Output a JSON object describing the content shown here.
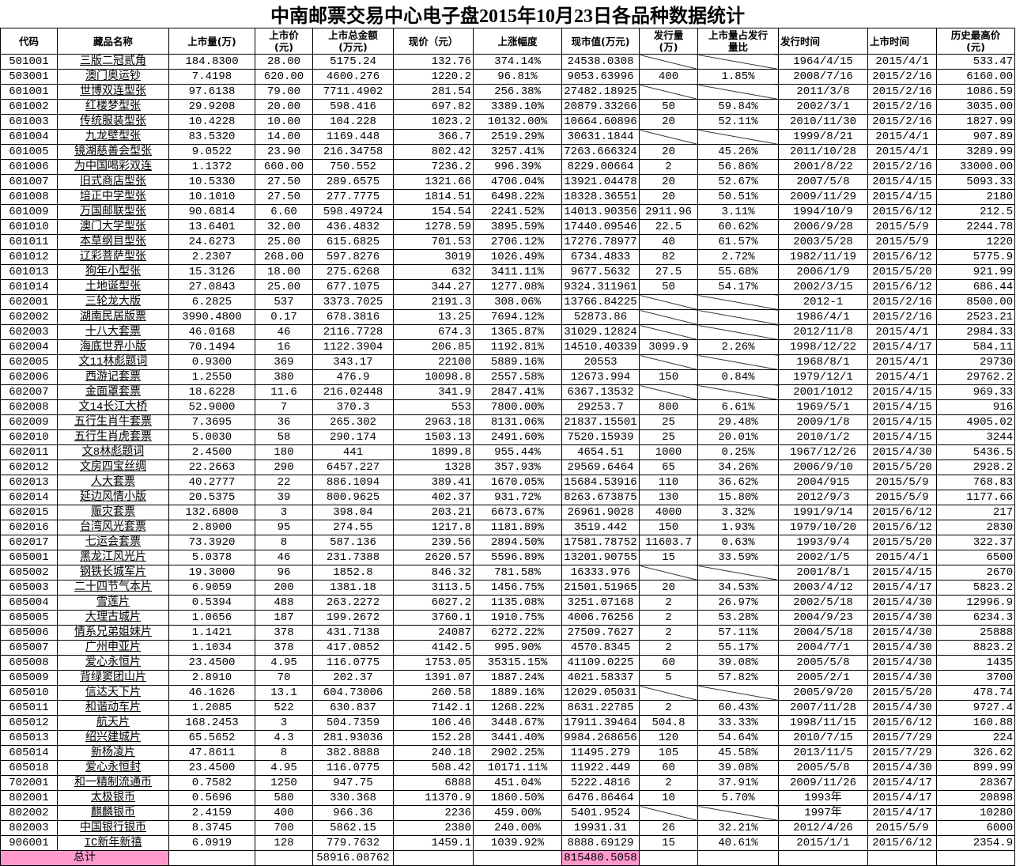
{
  "title": "中南邮票交易中心电子盘2015年10月23日各品种数据统计",
  "headers": [
    "代码",
    "藏品名称",
    "上市量(万)",
    "上市价\n(元)",
    "上市总金额\n(万元)",
    "现价（元）",
    "上涨幅度",
    "现市值(万元)",
    "发行量\n(万)",
    "上市量占发行\n量比",
    "发行时间",
    "上市时间",
    "历史最高价\n(元)"
  ],
  "slash_note": "",
  "rows": [
    [
      "501001",
      "三版二冠贰角",
      "184.8300",
      "28.00",
      "5175.24",
      "132.76",
      "374.14%",
      "24538.0308",
      null,
      null,
      "1964/4/15",
      "2015/4/1",
      "533.47"
    ],
    [
      "503001",
      "澳门奥运钞",
      "7.4198",
      "620.00",
      "4600.276",
      "1220.2",
      "96.81%",
      "9053.63996",
      "400",
      "1.85%",
      "2008/7/16",
      "2015/2/16",
      "6160.00"
    ],
    [
      "601001",
      "世博双连型张",
      "97.6138",
      "79.00",
      "7711.4902",
      "281.54",
      "256.38%",
      "27482.18925",
      null,
      null,
      "2011/3/8",
      "2015/2/16",
      "1086.59"
    ],
    [
      "601002",
      "红楼梦型张",
      "29.9208",
      "20.00",
      "598.416",
      "697.82",
      "3389.10%",
      "20879.33266",
      "50",
      "59.84%",
      "2002/3/1",
      "2015/2/16",
      "3035.00"
    ],
    [
      "601003",
      "传统服装型张",
      "10.4228",
      "10.00",
      "104.228",
      "1023.2",
      "10132.00%",
      "10664.60896",
      "20",
      "52.11%",
      "2010/11/30",
      "2015/2/16",
      "1827.99"
    ],
    [
      "601004",
      "九龙壁型张",
      "83.5320",
      "14.00",
      "1169.448",
      "366.7",
      "2519.29%",
      "30631.1844",
      null,
      null,
      "1999/8/21",
      "2015/4/1",
      "907.89"
    ],
    [
      "601005",
      "镜湖慈善会型张",
      "9.0522",
      "23.90",
      "216.34758",
      "802.42",
      "3257.41%",
      "7263.666324",
      "20",
      "45.26%",
      "2011/10/28",
      "2015/4/1",
      "3289.99"
    ],
    [
      "601006",
      "为中国喝彩双连",
      "1.1372",
      "660.00",
      "750.552",
      "7236.2",
      "996.39%",
      "8229.00664",
      "2",
      "56.86%",
      "2001/8/22",
      "2015/2/16",
      "33000.00"
    ],
    [
      "601007",
      "旧式商店型张",
      "10.5330",
      "27.50",
      "289.6575",
      "1321.66",
      "4706.04%",
      "13921.04478",
      "20",
      "52.67%",
      "2007/5/8",
      "2015/4/15",
      "5093.33"
    ],
    [
      "601008",
      "培正中学型张",
      "10.1010",
      "27.50",
      "277.7775",
      "1814.51",
      "6498.22%",
      "18328.36551",
      "20",
      "50.51%",
      "2009/11/29",
      "2015/4/15",
      "2180"
    ],
    [
      "601009",
      "万国邮联型张",
      "90.6814",
      "6.60",
      "598.49724",
      "154.54",
      "2241.52%",
      "14013.90356",
      "2911.96",
      "3.11%",
      "1994/10/9",
      "2015/6/12",
      "212.5"
    ],
    [
      "601010",
      "澳门大学型张",
      "13.6401",
      "32.00",
      "436.4832",
      "1278.59",
      "3895.59%",
      "17440.09546",
      "22.5",
      "60.62%",
      "2006/9/28",
      "2015/5/9",
      "2244.78"
    ],
    [
      "601011",
      "本草纲目型张",
      "24.6273",
      "25.00",
      "615.6825",
      "701.53",
      "2706.12%",
      "17276.78977",
      "40",
      "61.57%",
      "2003/5/28",
      "2015/5/9",
      "1220"
    ],
    [
      "601012",
      "辽彩菩萨型张",
      "2.2307",
      "268.00",
      "597.8276",
      "3019",
      "1026.49%",
      "6734.4833",
      "82",
      "2.72%",
      "1982/11/19",
      "2015/6/12",
      "5775.9"
    ],
    [
      "601013",
      "狗年小型张",
      "15.3126",
      "18.00",
      "275.6268",
      "632",
      "3411.11%",
      "9677.5632",
      "27.5",
      "55.68%",
      "2006/1/9",
      "2015/5/20",
      "921.99"
    ],
    [
      "601014",
      "土地诞型张",
      "27.0843",
      "25.00",
      "677.1075",
      "344.27",
      "1277.08%",
      "9324.311961",
      "50",
      "54.17%",
      "2002/3/15",
      "2015/6/12",
      "686.44"
    ],
    [
      "602001",
      "三轮龙大版",
      "6.2825",
      "537",
      "3373.7025",
      "2191.3",
      "308.06%",
      "13766.84225",
      null,
      null,
      "2012-1",
      "2015/2/16",
      "8500.00"
    ],
    [
      "602002",
      "湖南民居版票",
      "3990.4800",
      "0.17",
      "678.3816",
      "13.25",
      "7694.12%",
      "52873.86",
      null,
      null,
      "1986/4/1",
      "2015/2/16",
      "2523.21"
    ],
    [
      "602003",
      "十八大套票",
      "46.0168",
      "46",
      "2116.7728",
      "674.3",
      "1365.87%",
      "31029.12824",
      null,
      null,
      "2012/11/8",
      "2015/4/1",
      "2984.33"
    ],
    [
      "602004",
      "海底世界小版",
      "70.1494",
      "16",
      "1122.3904",
      "206.85",
      "1192.81%",
      "14510.40339",
      "3099.9",
      "2.26%",
      "1998/12/22",
      "2015/4/17",
      "584.11"
    ],
    [
      "602005",
      "文11林彪题词",
      "0.9300",
      "369",
      "343.17",
      "22100",
      "5889.16%",
      "20553",
      null,
      null,
      "1968/8/1",
      "2015/4/1",
      "29730"
    ],
    [
      "602006",
      "西游记套票",
      "1.2550",
      "380",
      "476.9",
      "10098.8",
      "2557.58%",
      "12673.994",
      "150",
      "0.84%",
      "1979/12/1",
      "2015/4/1",
      "29762.2"
    ],
    [
      "602007",
      "金面罩套票",
      "18.6228",
      "11.6",
      "216.02448",
      "341.9",
      "2847.41%",
      "6367.13532",
      null,
      null,
      "2001/1012",
      "2015/4/15",
      "969.33"
    ],
    [
      "602008",
      "文14长江大桥",
      "52.9000",
      "7",
      "370.3",
      "553",
      "7800.00%",
      "29253.7",
      "800",
      "6.61%",
      "1969/5/1",
      "2015/4/15",
      "916"
    ],
    [
      "602009",
      "五行生肖牛套票",
      "7.3695",
      "36",
      "265.302",
      "2963.18",
      "8131.06%",
      "21837.15501",
      "25",
      "29.48%",
      "2009/1/8",
      "2015/4/15",
      "4905.02"
    ],
    [
      "602010",
      "五行生肖虎套票",
      "5.0030",
      "58",
      "290.174",
      "1503.13",
      "2491.60%",
      "7520.15939",
      "25",
      "20.01%",
      "2010/1/2",
      "2015/4/15",
      "3244"
    ],
    [
      "602011",
      "文8林彪题词",
      "2.4500",
      "180",
      "441",
      "1899.8",
      "955.44%",
      "4654.51",
      "1000",
      "0.25%",
      "1967/12/26",
      "2015/4/30",
      "5436.5"
    ],
    [
      "602012",
      "文房四宝丝绸",
      "22.2663",
      "290",
      "6457.227",
      "1328",
      "357.93%",
      "29569.6464",
      "65",
      "34.26%",
      "2006/9/10",
      "2015/5/20",
      "2928.2"
    ],
    [
      "602013",
      "人大套票",
      "40.2777",
      "22",
      "886.1094",
      "389.41",
      "1670.05%",
      "15684.53916",
      "110",
      "36.62%",
      "2004/915",
      "2015/5/9",
      "768.83"
    ],
    [
      "602014",
      "延边风情小版",
      "20.5375",
      "39",
      "800.9625",
      "402.37",
      "931.72%",
      "8263.673875",
      "130",
      "15.80%",
      "2012/9/3",
      "2015/5/9",
      "1177.66"
    ],
    [
      "602015",
      "赈灾套票",
      "132.6800",
      "3",
      "398.04",
      "203.21",
      "6673.67%",
      "26961.9028",
      "4000",
      "3.32%",
      "1991/9/14",
      "2015/6/12",
      "217"
    ],
    [
      "602016",
      "台湾风光套票",
      "2.8900",
      "95",
      "274.55",
      "1217.8",
      "1181.89%",
      "3519.442",
      "150",
      "1.93%",
      "1979/10/20",
      "2015/6/12",
      "2830"
    ],
    [
      "602017",
      "七运会套票",
      "73.3920",
      "8",
      "587.136",
      "239.56",
      "2894.50%",
      "17581.78752",
      "11603.7",
      "0.63%",
      "1993/9/4",
      "2015/5/20",
      "322.37"
    ],
    [
      "605001",
      "黑龙江风光片",
      "5.0378",
      "46",
      "231.7388",
      "2620.57",
      "5596.89%",
      "13201.90755",
      "15",
      "33.59%",
      "2002/1/5",
      "2015/4/1",
      "6500"
    ],
    [
      "605002",
      "钢铁长城军片",
      "19.3000",
      "96",
      "1852.8",
      "846.32",
      "781.58%",
      "16333.976",
      null,
      null,
      "2001/8/1",
      "2015/4/15",
      "2670"
    ],
    [
      "605003",
      "二十四节气本片",
      "6.9059",
      "200",
      "1381.18",
      "3113.5",
      "1456.75%",
      "21501.51965",
      "20",
      "34.53%",
      "2003/4/12",
      "2015/4/17",
      "5823.2"
    ],
    [
      "605004",
      "雪莲片",
      "0.5394",
      "488",
      "263.2272",
      "6027.2",
      "1135.08%",
      "3251.07168",
      "2",
      "26.97%",
      "2002/5/18",
      "2015/4/30",
      "12996.9"
    ],
    [
      "605005",
      "大理古城片",
      "1.0656",
      "187",
      "199.2672",
      "3760.1",
      "1910.75%",
      "4006.76256",
      "2",
      "53.28%",
      "2004/9/23",
      "2015/4/30",
      "6234.3"
    ],
    [
      "605006",
      "情系兄弟姐妹片",
      "1.1421",
      "378",
      "431.7138",
      "24087",
      "6272.22%",
      "27509.7627",
      "2",
      "57.11%",
      "2004/5/18",
      "2015/4/30",
      "25888"
    ],
    [
      "605007",
      "广州申亚片",
      "1.1034",
      "378",
      "417.0852",
      "4142.5",
      "995.90%",
      "4570.8345",
      "2",
      "55.17%",
      "2004/7/1",
      "2015/4/30",
      "8823.2"
    ],
    [
      "605008",
      "爱心永恒片",
      "23.4500",
      "4.95",
      "116.0775",
      "1753.05",
      "35315.15%",
      "41109.0225",
      "60",
      "39.08%",
      "2005/5/8",
      "2015/4/30",
      "1435"
    ],
    [
      "605009",
      "背绿窦团山片",
      "2.8910",
      "70",
      "202.37",
      "1391.07",
      "1887.24%",
      "4021.58337",
      "5",
      "57.82%",
      "2005/2/1",
      "2015/4/30",
      "3700"
    ],
    [
      "605010",
      "信达天下片",
      "46.1626",
      "13.1",
      "604.73006",
      "260.58",
      "1889.16%",
      "12029.05031",
      null,
      null,
      "2005/9/20",
      "2015/5/20",
      "478.74"
    ],
    [
      "605011",
      "和谐动车片",
      "1.2085",
      "522",
      "630.837",
      "7142.1",
      "1268.22%",
      "8631.22785",
      "2",
      "60.43%",
      "2007/11/28",
      "2015/4/30",
      "9727.4"
    ],
    [
      "605012",
      "航天片",
      "168.2453",
      "3",
      "504.7359",
      "106.46",
      "3448.67%",
      "17911.39464",
      "504.8",
      "33.33%",
      "1998/11/15",
      "2015/6/12",
      "160.88"
    ],
    [
      "605013",
      "绍兴建城片",
      "65.5652",
      "4.3",
      "281.93036",
      "152.28",
      "3441.40%",
      "9984.268656",
      "120",
      "54.64%",
      "2010/7/15",
      "2015/7/29",
      "224"
    ],
    [
      "605014",
      "新杨凌片",
      "47.8611",
      "8",
      "382.8888",
      "240.18",
      "2902.25%",
      "11495.279",
      "105",
      "45.58%",
      "2013/11/5",
      "2015/7/29",
      "326.62"
    ],
    [
      "605018",
      "爱心永恒封",
      "23.4500",
      "4.95",
      "116.0775",
      "508.42",
      "10171.11%",
      "11922.449",
      "60",
      "39.08%",
      "2005/5/8",
      "2015/4/30",
      "899.99"
    ],
    [
      "702001",
      "和一精制流通币",
      "0.7582",
      "1250",
      "947.75",
      "6888",
      "451.04%",
      "5222.4816",
      "2",
      "37.91%",
      "2009/11/26",
      "2015/4/17",
      "28367"
    ],
    [
      "802001",
      "太极银币",
      "0.5696",
      "580",
      "330.368",
      "11370.9",
      "1860.50%",
      "6476.86464",
      "10",
      "5.70%",
      "1993年",
      "2015/4/17",
      "20898"
    ],
    [
      "802002",
      "麒麟银币",
      "2.4159",
      "400",
      "966.36",
      "2236",
      "459.00%",
      "5401.9524",
      null,
      null,
      "1997年",
      "2015/4/17",
      "10280"
    ],
    [
      "802003",
      "中国银行银币",
      "8.3745",
      "700",
      "5862.15",
      "2380",
      "240.00%",
      "19931.31",
      "26",
      "32.21%",
      "2012/4/26",
      "2015/5/9",
      "6000"
    ],
    [
      "906001",
      "IC新年新禧",
      "6.0919",
      "128",
      "779.7632",
      "1459.1",
      "1039.92%",
      "8888.69129",
      "15",
      "40.61%",
      "2015/1/1",
      "2015/6/12",
      "2354.9"
    ]
  ],
  "total": {
    "label": "总计",
    "listing_total_amount": "58916.08762",
    "market_value_total": "815480.5058"
  },
  "colors": {
    "highlight": "#ff99cc",
    "grid": "#000000"
  }
}
